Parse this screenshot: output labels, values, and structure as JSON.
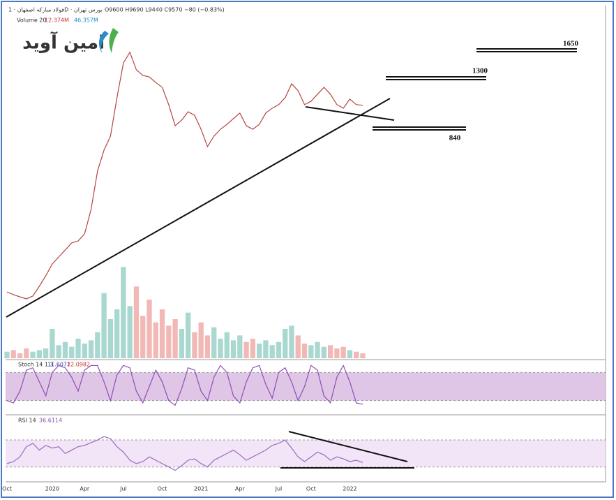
{
  "logo": "امین آوید",
  "chart_data": [
    {
      "type": "line",
      "title": "فولاد مبارکه اصفهان · 1D · بورس تهران",
      "subtitle": "O9600 H9690 L9440 C9570 −80 (−0.83%)",
      "color": "#b5443f",
      "ylim": [
        0,
        14000
      ],
      "levels": [
        "1650",
        "1300",
        "840"
      ],
      "values": [
        1160,
        1040,
        940,
        850,
        980,
        1420,
        1890,
        2420,
        2740,
        3050,
        3370,
        3460,
        3780,
        4880,
        6610,
        7550,
        8180,
        9910,
        11480,
        11960,
        11170,
        10920,
        10850,
        10600,
        10380,
        9600,
        8650,
        8900,
        9280,
        9120,
        8490,
        7710,
        8180,
        8490,
        8710,
        8970,
        9220,
        8650,
        8490,
        8710,
        9220,
        9440,
        9600,
        9910,
        10540,
        10230,
        9600,
        9750,
        10070,
        10380,
        10070,
        9600,
        9440,
        9850,
        9600,
        9570
      ]
    },
    {
      "type": "bar",
      "title": "Volume 20",
      "subtitle": "12.374M",
      "note": "46.357M",
      "up_color": "#a8d8cf",
      "down_color": "#f2b8b5",
      "ylim": [
        0,
        300
      ],
      "values": [
        20,
        25,
        15,
        30,
        20,
        25,
        30,
        90,
        40,
        50,
        35,
        60,
        45,
        55,
        80,
        200,
        120,
        150,
        280,
        160,
        220,
        130,
        180,
        110,
        150,
        100,
        120,
        90,
        140,
        80,
        110,
        70,
        95,
        60,
        80,
        55,
        70,
        50,
        60,
        45,
        55,
        40,
        50,
        90,
        100,
        70,
        45,
        40,
        50,
        35,
        40,
        30,
        35,
        25,
        20,
        15
      ]
    },
    {
      "type": "line",
      "title": "Stoch 14 1 3",
      "subtitle": "11.6071",
      "note": "22.0982",
      "color": "#8e4fb3",
      "band_color": "#d7b7e0",
      "ylim": [
        0,
        100
      ],
      "bands": [
        20,
        80
      ],
      "values": [
        20,
        15,
        40,
        85,
        90,
        60,
        30,
        80,
        95,
        90,
        70,
        40,
        85,
        95,
        95,
        60,
        20,
        75,
        95,
        90,
        40,
        15,
        50,
        85,
        60,
        20,
        10,
        45,
        90,
        85,
        40,
        20,
        70,
        95,
        80,
        30,
        15,
        60,
        90,
        95,
        55,
        25,
        80,
        90,
        60,
        20,
        50,
        95,
        85,
        30,
        15,
        70,
        95,
        60,
        15,
        12
      ]
    },
    {
      "type": "line",
      "title": "RSI 14",
      "subtitle": "36.6114",
      "color": "#9c6bc0",
      "band_color": "#efdff5",
      "ylim": [
        8,
        100
      ],
      "bands": [
        30,
        70
      ],
      "values": [
        35,
        38,
        45,
        60,
        65,
        55,
        62,
        58,
        60,
        50,
        55,
        60,
        62,
        66,
        70,
        75,
        72,
        60,
        52,
        40,
        35,
        38,
        45,
        40,
        35,
        30,
        25,
        32,
        40,
        42,
        35,
        30,
        40,
        45,
        50,
        55,
        48,
        40,
        45,
        50,
        55,
        62,
        65,
        70,
        58,
        45,
        38,
        45,
        52,
        48,
        40,
        45,
        42,
        38,
        40,
        36.6114
      ],
      "categories": [
        "Oct",
        null,
        null,
        null,
        null,
        null,
        null,
        "2020",
        null,
        null,
        null,
        null,
        "Apr",
        null,
        null,
        null,
        null,
        null,
        "Jul",
        null,
        null,
        null,
        null,
        null,
        "Oct",
        null,
        null,
        null,
        null,
        null,
        "2021",
        null,
        null,
        null,
        null,
        null,
        "Apr",
        null,
        null,
        null,
        null,
        null,
        "Jul",
        null,
        null,
        null,
        null,
        "Oct",
        null,
        null,
        null,
        null,
        null,
        "2022",
        null,
        null
      ]
    }
  ]
}
